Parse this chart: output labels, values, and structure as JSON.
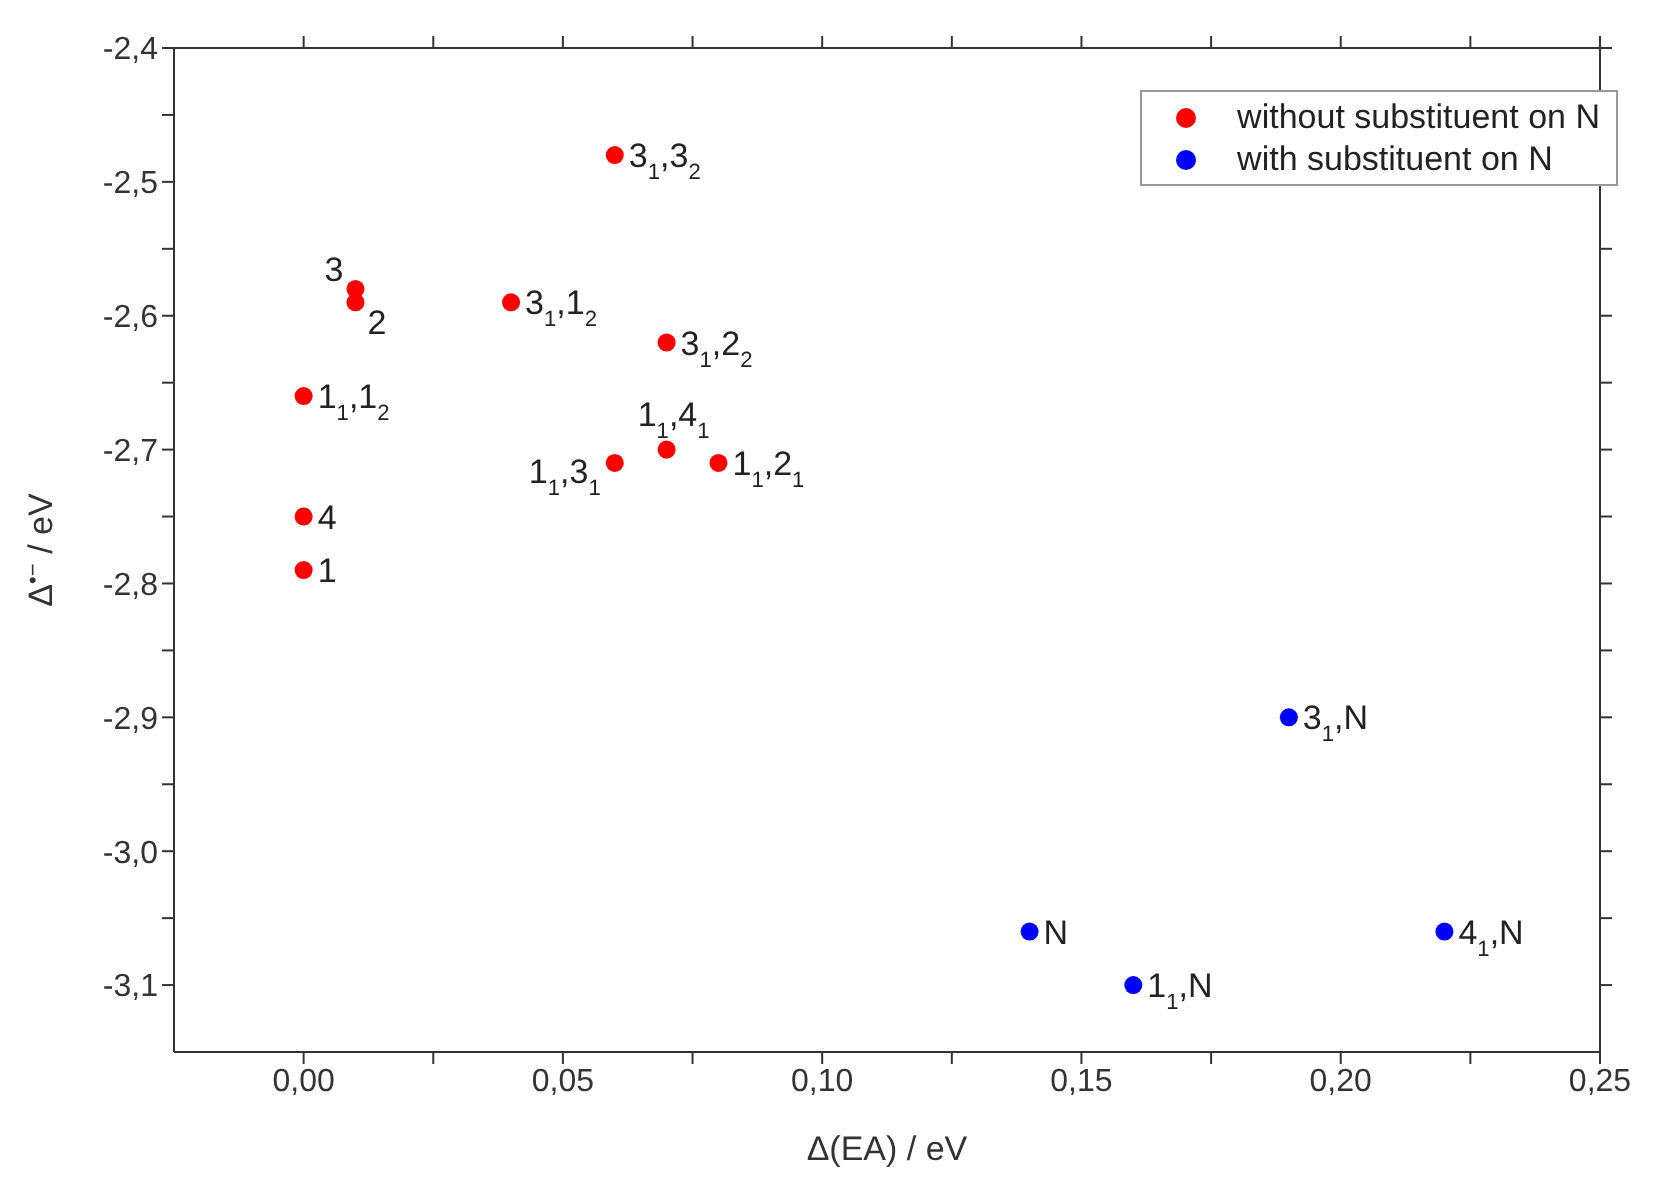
{
  "chart_data": {
    "type": "scatter",
    "xlabel": "Δ(EA) / eV",
    "ylabel": "Δ$^{•−}$ / eV",
    "xlim": [
      -0.025,
      0.25
    ],
    "xticks": [
      {
        "value": 0,
        "label": "0,00"
      },
      {
        "value": 0.025,
        "label": null
      },
      {
        "value": 0.05,
        "label": "0,05"
      },
      {
        "value": 0.075,
        "label": null
      },
      {
        "value": 0.1,
        "label": "0,10"
      },
      {
        "value": 0.125,
        "label": null
      },
      {
        "value": 0.15,
        "label": "0,15"
      },
      {
        "value": 0.175,
        "label": null
      },
      {
        "value": 0.2,
        "label": "0,20"
      },
      {
        "value": 0.225,
        "label": null
      },
      {
        "value": 0.25,
        "label": "0,25"
      }
    ],
    "ylim": [
      -3.15,
      -2.4
    ],
    "yticks": [
      {
        "value": -3.1,
        "label": "-3,1"
      },
      {
        "value": -3.05,
        "label": null
      },
      {
        "value": -3.0,
        "label": "-3,0"
      },
      {
        "value": -2.95,
        "label": null
      },
      {
        "value": -2.9,
        "label": "-2,9"
      },
      {
        "value": -2.85,
        "label": null
      },
      {
        "value": -2.8,
        "label": "-2,8"
      },
      {
        "value": -2.75,
        "label": null
      },
      {
        "value": -2.7,
        "label": "-2,7"
      },
      {
        "value": -2.65,
        "label": null
      },
      {
        "value": -2.6,
        "label": "-2,6"
      },
      {
        "value": -2.55,
        "label": null
      },
      {
        "value": -2.5,
        "label": "-2,5"
      },
      {
        "value": -2.45,
        "label": null
      },
      {
        "value": -2.4,
        "label": "-2,4"
      }
    ],
    "legend": "top right",
    "marker": "circle",
    "series": [
      {
        "name": "without substituent on N",
        "color": "#ff0000",
        "x": [
          0.06,
          0.01,
          0.01,
          0.04,
          0.07,
          0,
          0.07,
          0.06,
          0.08,
          0,
          0
        ],
        "values": [
          -2.48,
          -2.58,
          -2.59,
          -2.59,
          -2.62,
          -2.66,
          -2.7,
          -2.71,
          -2.71,
          -2.75,
          -2.79
        ]
      },
      {
        "name": "with substituent on N",
        "color": "#0000ff",
        "x": [
          0.19,
          0.14,
          0.16,
          0.22
        ],
        "values": [
          -2.9,
          -3.06,
          -3.1,
          -3.06
        ]
      }
    ],
    "annotations": [
      {
        "text": "3$_{1}$,3$_{2}$",
        "x": 0.06,
        "y": -2.48
      },
      {
        "text": "3",
        "x": 0.01,
        "y": -2.58
      },
      {
        "text": "2",
        "x": 0.01,
        "y": -2.59
      },
      {
        "text": "3$_{1}$,1$_{2}$",
        "x": 0.04,
        "y": -2.59
      },
      {
        "text": "3$_{1}$,2$_{2}$",
        "x": 0.07,
        "y": -2.62
      },
      {
        "text": "1$_{1}$,1$_{2}$",
        "x": 0,
        "y": -2.66
      },
      {
        "text": "1$_{1}$,4$_{1}$",
        "x": 0.07,
        "y": -2.7
      },
      {
        "text": "1$_{1}$,3$_{1}$",
        "x": 0.06,
        "y": -2.71
      },
      {
        "text": "1$_{1}$,2$_{1}$",
        "x": 0.08,
        "y": -2.71
      },
      {
        "text": "4",
        "x": 0,
        "y": -2.75
      },
      {
        "text": "1",
        "x": 0,
        "y": -2.79
      },
      {
        "text": "3$_{1}$,N",
        "x": 0.19,
        "y": -2.9
      },
      {
        "text": "N",
        "x": 0.14,
        "y": -3.06
      },
      {
        "text": "1$_{1}$,N",
        "x": 0.16,
        "y": -3.1
      },
      {
        "text": "4$_{1}$,N",
        "x": 0.22,
        "y": -3.06
      }
    ]
  }
}
